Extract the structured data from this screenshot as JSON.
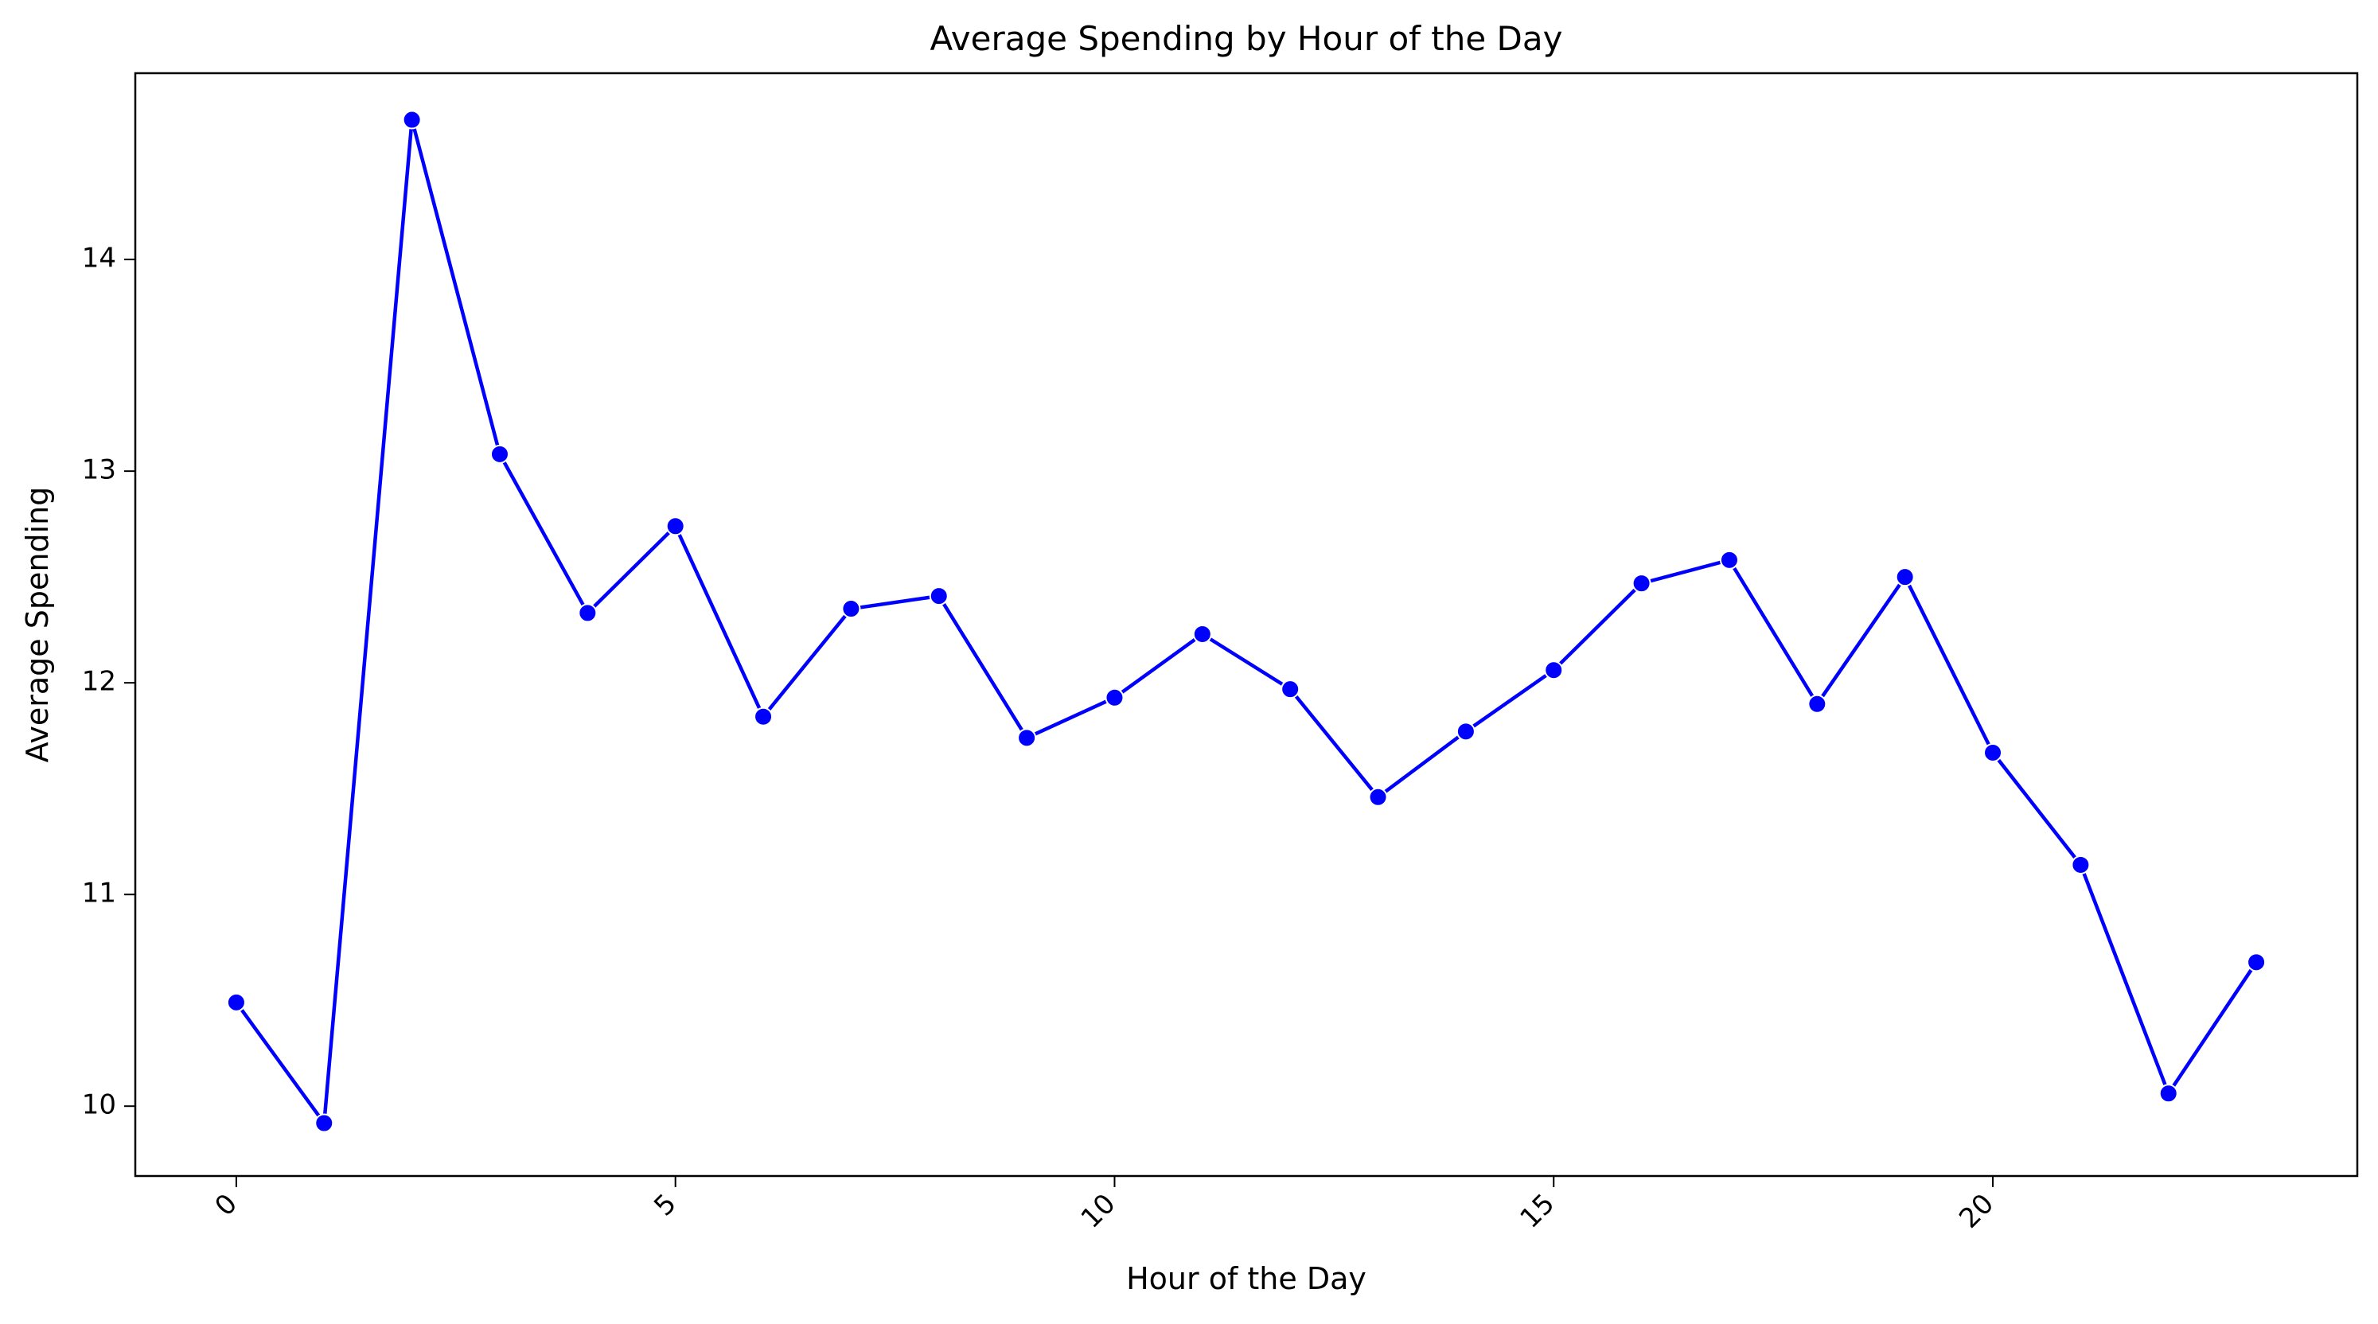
{
  "chart_data": {
    "type": "line",
    "title": "Average Spending by Hour of the Day",
    "xlabel": "Hour of the Day",
    "ylabel": "Average Spending",
    "xlim": [
      -1.15,
      24.15
    ],
    "ylim": [
      9.67,
      14.88
    ],
    "x_ticks": [
      0,
      5,
      10,
      15,
      20
    ],
    "y_ticks": [
      10,
      11,
      12,
      13,
      14
    ],
    "grid": false,
    "legend": "none",
    "series": [
      {
        "color": "#0000ff",
        "marker": "circle",
        "x": [
          0,
          1,
          2,
          3,
          4,
          5,
          6,
          7,
          8,
          9,
          10,
          11,
          12,
          13,
          14,
          15,
          16,
          17,
          18,
          19,
          20,
          21,
          22,
          23
        ],
        "values": [
          10.49,
          9.92,
          14.66,
          13.08,
          12.33,
          12.74,
          11.84,
          12.35,
          12.41,
          11.74,
          11.93,
          12.23,
          11.97,
          11.46,
          11.77,
          12.06,
          12.47,
          12.58,
          11.9,
          12.5,
          11.67,
          11.14,
          10.06,
          10.68
        ]
      }
    ]
  }
}
